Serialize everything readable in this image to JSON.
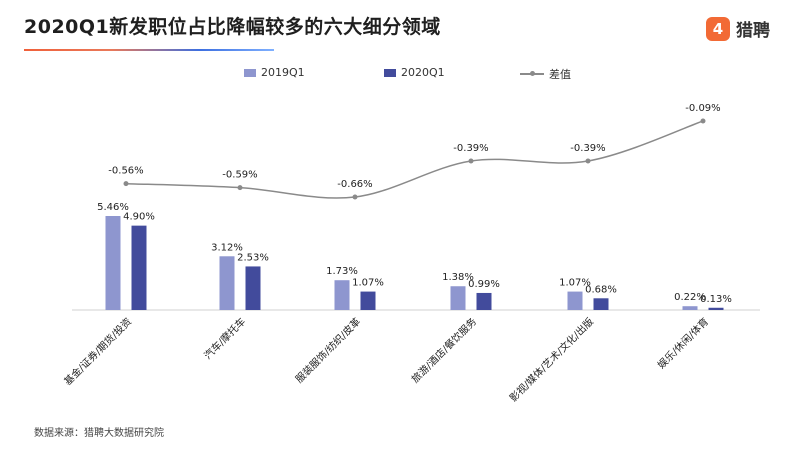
{
  "title": "2020Q1新发职位占比降幅较多的六大细分领域",
  "logo": {
    "text": "猎聘",
    "mark": "4"
  },
  "source": "数据来源：猎聘大数据研究院",
  "colors": {
    "s2019": "#8e96cf",
    "s2020": "#424b9c",
    "diff": "#8a8a8a"
  },
  "chart_data": {
    "type": "bar",
    "categories": [
      "基金/证券/期货/投资",
      "汽车/摩托车",
      "服装服饰/纺织/皮革",
      "旅游/酒店/餐饮服务",
      "影视/媒体/艺术/文化/出版",
      "娱乐/休闲/体育"
    ],
    "series": [
      {
        "name": "2019Q1",
        "values": [
          5.46,
          3.12,
          1.73,
          1.38,
          1.07,
          0.22
        ],
        "labels": [
          "5.46%",
          "3.12%",
          "1.73%",
          "1.38%",
          "1.07%",
          "0.22%"
        ]
      },
      {
        "name": "2020Q1",
        "values": [
          4.9,
          2.53,
          1.07,
          0.99,
          0.68,
          0.13
        ],
        "labels": [
          "4.90%",
          "2.53%",
          "1.07%",
          "0.99%",
          "0.68%",
          "0.13%"
        ]
      }
    ],
    "line_series": {
      "name": "差值",
      "values": [
        -0.56,
        -0.59,
        -0.66,
        -0.39,
        -0.39,
        -0.09
      ],
      "labels": [
        "-0.56%",
        "-0.59%",
        "-0.66%",
        "-0.39%",
        "-0.39%",
        "-0.09%"
      ]
    },
    "legend_position": "top",
    "grid": false
  }
}
